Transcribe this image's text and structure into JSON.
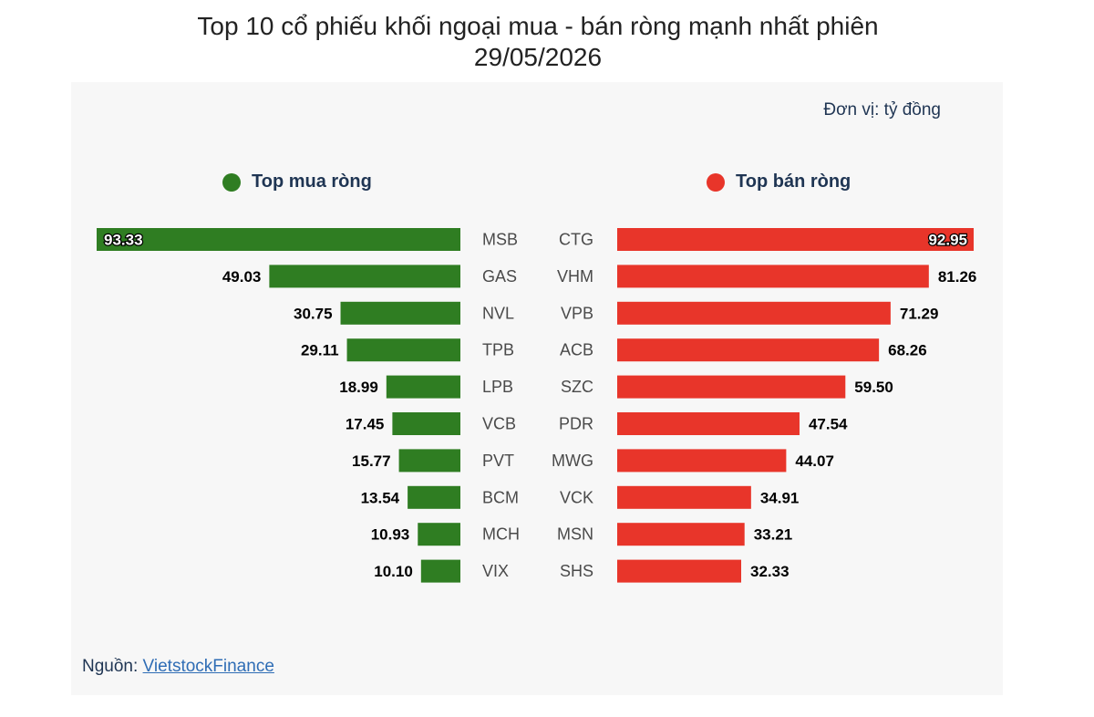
{
  "title_line1": "Top 10 cổ phiếu khối ngoại mua - bán ròng mạnh nhất phiên",
  "title_line2": "29/05/2026",
  "unit_label": "Đơn vị: tỷ đồng",
  "source_prefix": "Nguồn: ",
  "source_link": "VietstockFinance",
  "colors": {
    "buy": "#2f7d22",
    "sell": "#e8352a",
    "text": "#1f3553"
  },
  "chart_data": {
    "type": "bar",
    "orientation": "horizontal",
    "buy": {
      "legend": "Top mua ròng",
      "categories": [
        "MSB",
        "GAS",
        "NVL",
        "TPB",
        "LPB",
        "VCB",
        "PVT",
        "BCM",
        "MCH",
        "VIX"
      ],
      "values": [
        93.33,
        49.03,
        30.75,
        29.11,
        18.99,
        17.45,
        15.77,
        13.54,
        10.93,
        10.1
      ],
      "labels": [
        "93.33",
        "49.03",
        "30.75",
        "29.11",
        "18.99",
        "17.45",
        "15.77",
        "13.54",
        "10.93",
        "10.10"
      ]
    },
    "sell": {
      "legend": "Top bán ròng",
      "categories": [
        "CTG",
        "VHM",
        "VPB",
        "ACB",
        "SZC",
        "PDR",
        "MWG",
        "VCK",
        "MSN",
        "SHS"
      ],
      "values": [
        92.95,
        81.26,
        71.29,
        68.26,
        59.5,
        47.54,
        44.07,
        34.91,
        33.21,
        32.33
      ],
      "labels": [
        "92.95",
        "81.26",
        "71.29",
        "68.26",
        "59.50",
        "47.54",
        "44.07",
        "34.91",
        "33.21",
        "32.33"
      ]
    }
  }
}
